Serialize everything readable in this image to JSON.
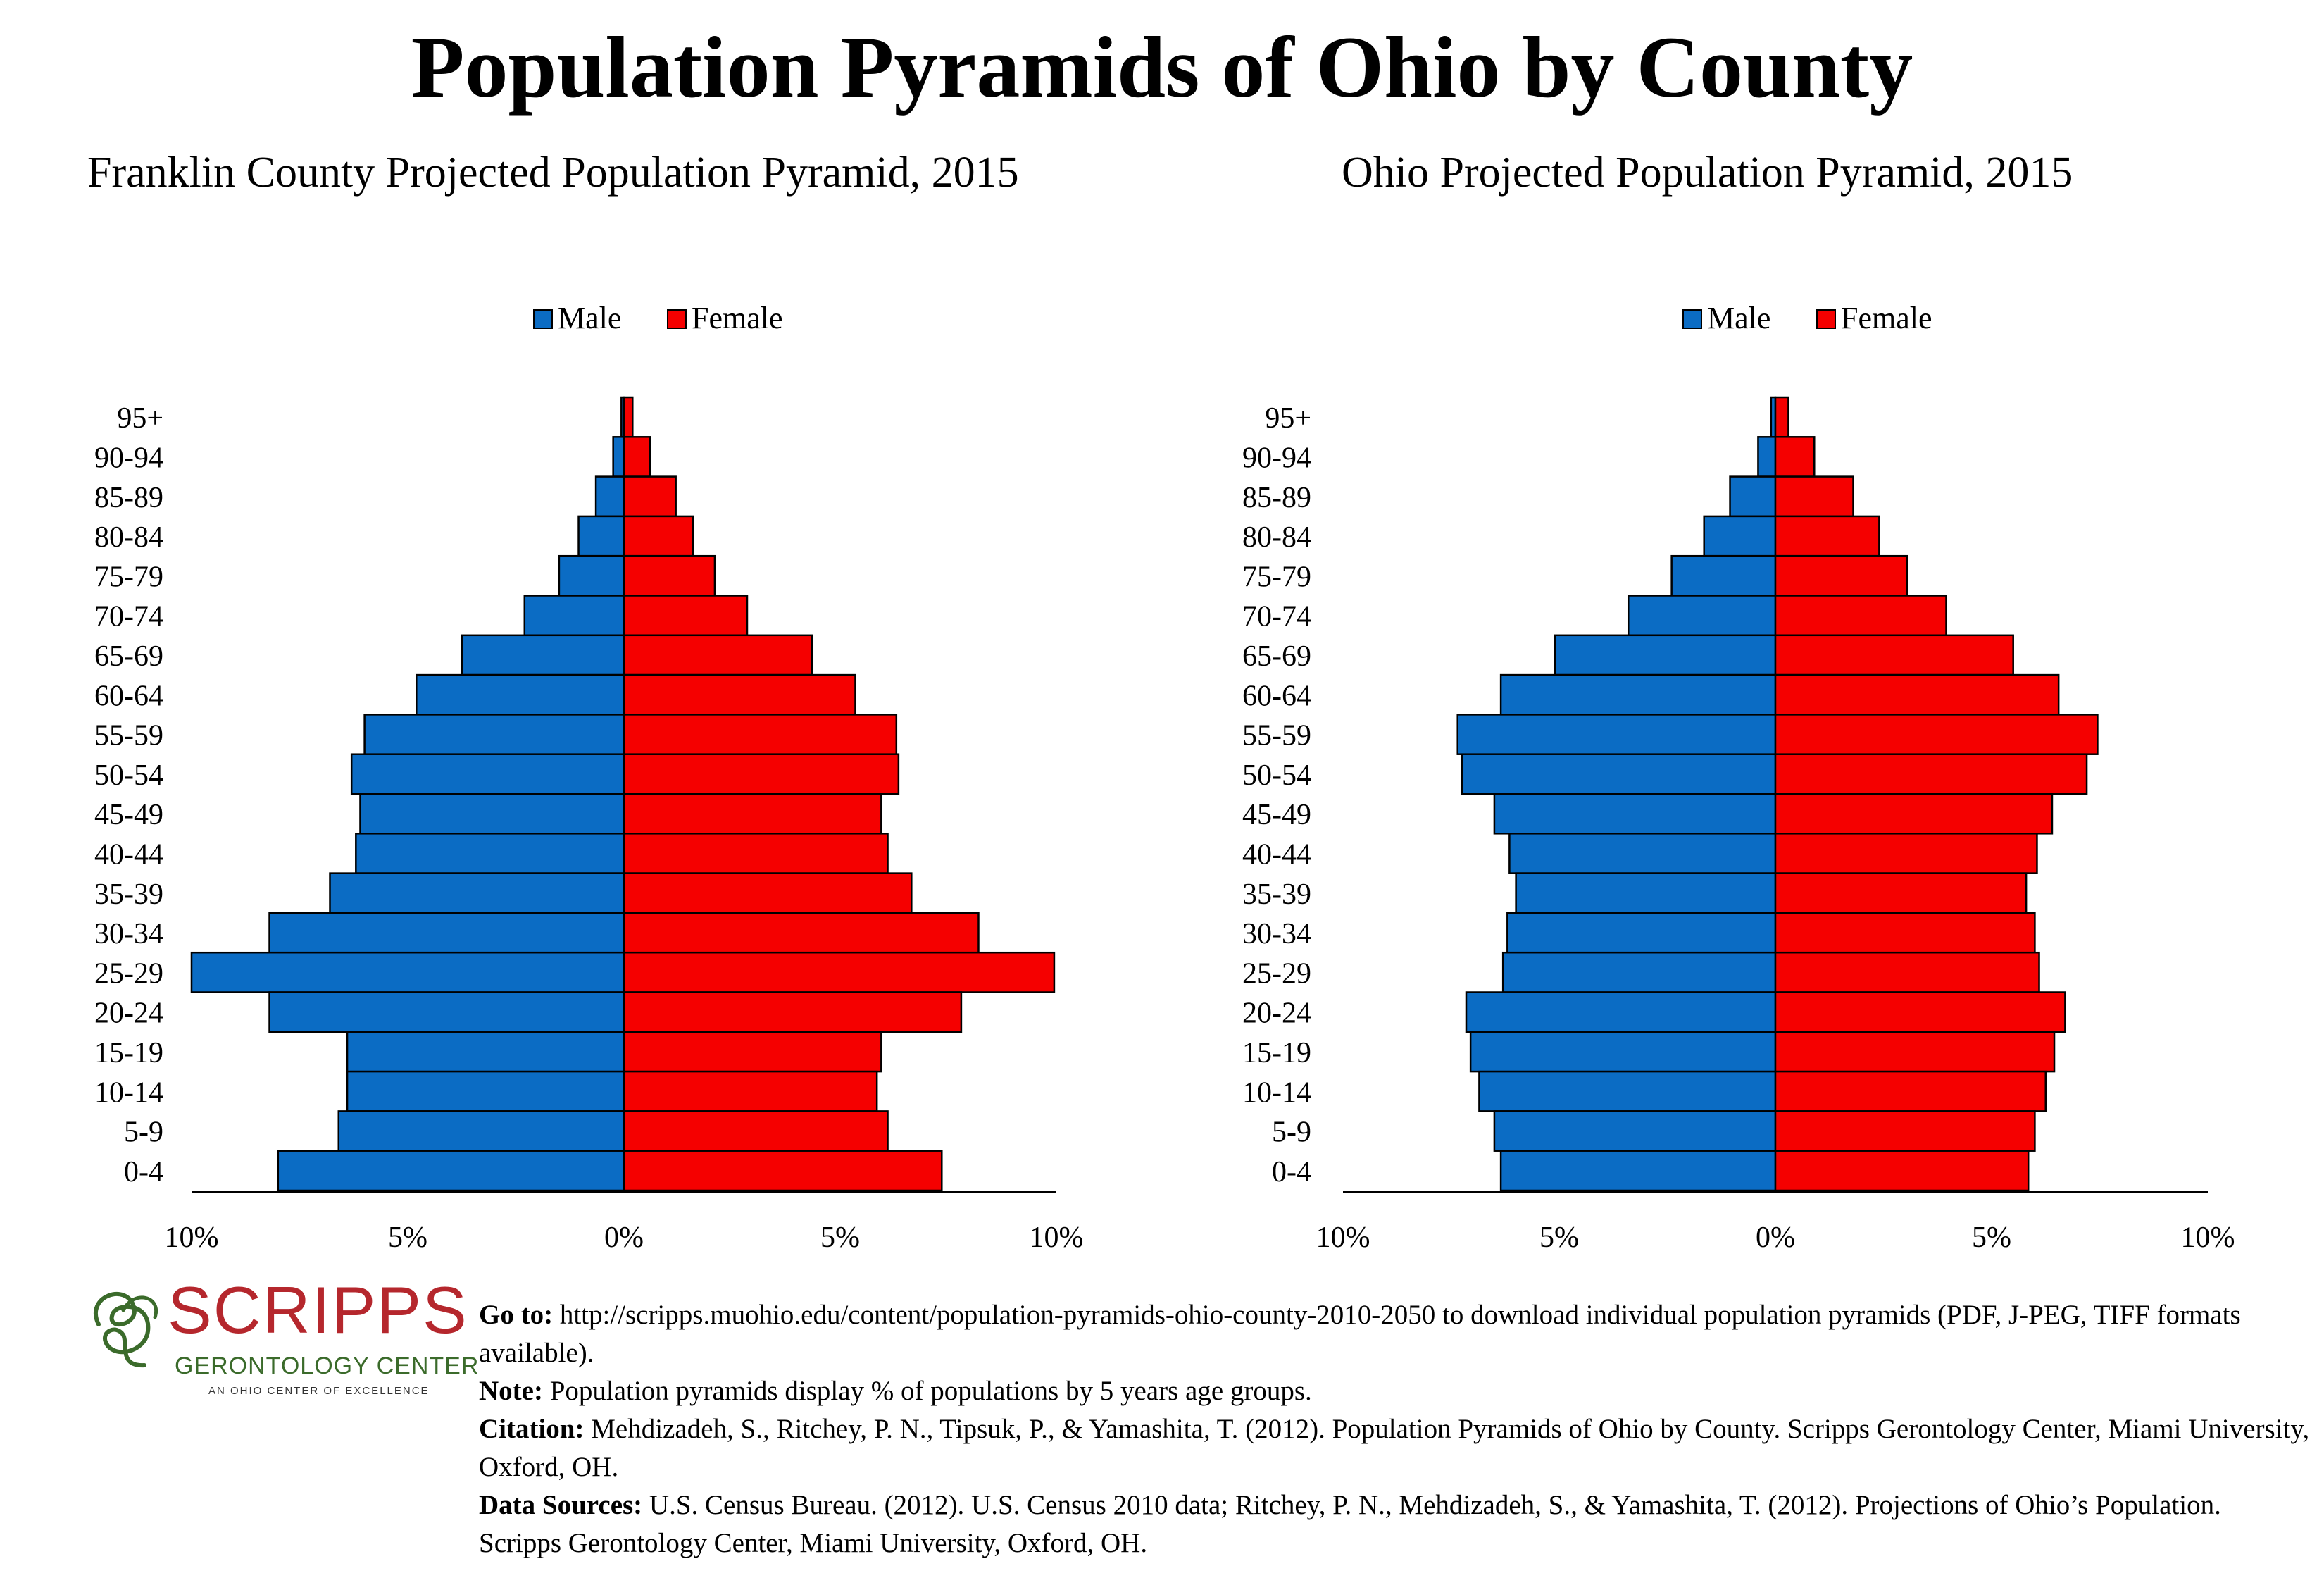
{
  "title": "Population Pyramids of Ohio by County",
  "colors": {
    "male": "#0b6cc4",
    "female": "#f50000"
  },
  "chart_data": [
    {
      "type": "bar",
      "orientation": "horizontal-pyramid",
      "title": "Franklin County Projected Population Pyramid, 2015",
      "categories": [
        "95+",
        "90-94",
        "85-89",
        "80-84",
        "75-79",
        "70-74",
        "65-69",
        "60-64",
        "55-59",
        "50-54",
        "45-49",
        "40-44",
        "35-39",
        "30-34",
        "25-29",
        "20-24",
        "15-19",
        "10-14",
        "5-9",
        "0-4"
      ],
      "series": [
        {
          "name": "Male",
          "values": [
            0.06,
            0.25,
            0.65,
            1.05,
            1.5,
            2.3,
            3.75,
            4.8,
            6.0,
            6.3,
            6.1,
            6.2,
            6.8,
            8.2,
            10.0,
            8.2,
            6.4,
            6.4,
            6.6,
            8.0
          ]
        },
        {
          "name": "Female",
          "values": [
            0.2,
            0.6,
            1.2,
            1.6,
            2.1,
            2.85,
            4.35,
            5.35,
            6.3,
            6.35,
            5.95,
            6.1,
            6.65,
            8.2,
            9.95,
            7.8,
            5.95,
            5.85,
            6.1,
            7.35
          ]
        }
      ],
      "xlim": [
        -10,
        10
      ],
      "xticks": [
        "10%",
        "5%",
        "0%",
        "5%",
        "10%"
      ],
      "legend": [
        "Male",
        "Female"
      ],
      "legend_position": "top-center",
      "grid": false
    },
    {
      "type": "bar",
      "orientation": "horizontal-pyramid",
      "title": "Ohio Projected Population Pyramid, 2015",
      "categories": [
        "95+",
        "90-94",
        "85-89",
        "80-84",
        "75-79",
        "70-74",
        "65-69",
        "60-64",
        "55-59",
        "50-54",
        "45-49",
        "40-44",
        "35-39",
        "30-34",
        "25-29",
        "20-24",
        "15-19",
        "10-14",
        "5-9",
        "0-4"
      ],
      "series": [
        {
          "name": "Male",
          "values": [
            0.1,
            0.4,
            1.05,
            1.65,
            2.4,
            3.4,
            5.1,
            6.35,
            7.35,
            7.25,
            6.5,
            6.15,
            6.0,
            6.2,
            6.3,
            7.15,
            7.05,
            6.85,
            6.5,
            6.35
          ]
        },
        {
          "name": "Female",
          "values": [
            0.3,
            0.9,
            1.8,
            2.4,
            3.05,
            3.95,
            5.5,
            6.55,
            7.45,
            7.2,
            6.4,
            6.05,
            5.8,
            6.0,
            6.1,
            6.7,
            6.45,
            6.25,
            6.0,
            5.85
          ]
        }
      ],
      "xlim": [
        -10,
        10
      ],
      "xticks": [
        "10%",
        "5%",
        "0%",
        "5%",
        "10%"
      ],
      "legend": [
        "Male",
        "Female"
      ],
      "legend_position": "top-center",
      "grid": false
    }
  ],
  "logo": {
    "name": "SCRIPPS",
    "subtitle": "GERONTOLOGY CENTER",
    "tagline": "AN OHIO CENTER OF EXCELLENCE"
  },
  "footer": {
    "goto_label": "Go to:",
    "goto_text": "http://scripps.muohio.edu/content/population-pyramids-ohio-county-2010-2050 to download individual population pyramids (PDF, J-PEG, TIFF formats available).",
    "note_label": "Note:",
    "note_text": "Population pyramids display % of populations by 5 years age groups.",
    "citation_label": "Citation:",
    "citation_text": "Mehdizadeh, S., Ritchey, P. N., Tipsuk, P., & Yamashita, T. (2012). Population Pyramids of Ohio by County. Scripps Gerontology Center, Miami University, Oxford, OH.",
    "sources_label": "Data Sources:",
    "sources_text": "U.S. Census Bureau. (2012). U.S. Census 2010 data; Ritchey, P. N., Mehdizadeh, S., & Yamashita, T. (2012). Projections of Ohio’s Population. Scripps Gerontology Center, Miami University, Oxford, OH."
  }
}
